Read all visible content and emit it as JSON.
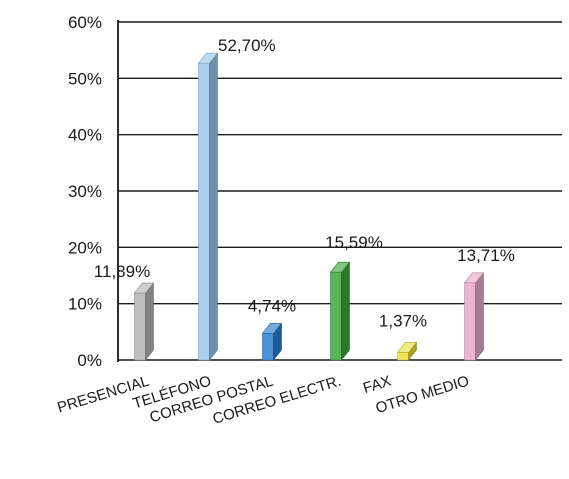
{
  "chart_data": {
    "type": "bar",
    "title": "",
    "xlabel": "",
    "ylabel": "",
    "ylim": [
      0,
      60
    ],
    "y_ticks": [
      0,
      10,
      20,
      30,
      40,
      50,
      60
    ],
    "y_tick_labels": [
      "0%",
      "10%",
      "20%",
      "30%",
      "40%",
      "50%",
      "60%"
    ],
    "grid": true,
    "style": "3d-bars",
    "categories": [
      "PRESENCIAL",
      "TELÉFONO",
      "CORREO POSTAL",
      "CORREO ELECTR.",
      "FAX",
      "OTRO MEDIO"
    ],
    "values": [
      11.89,
      52.7,
      4.74,
      15.59,
      1.37,
      13.71
    ],
    "data_labels": [
      "11,89%",
      "52,70%",
      "4,74%",
      "15,59%",
      "1,37%",
      "13,71%"
    ],
    "colors": [
      "#b4b4b4",
      "#9cc7ec",
      "#2b7fd0",
      "#3aa83a",
      "#e9e23a",
      "#e9a9c6"
    ]
  }
}
